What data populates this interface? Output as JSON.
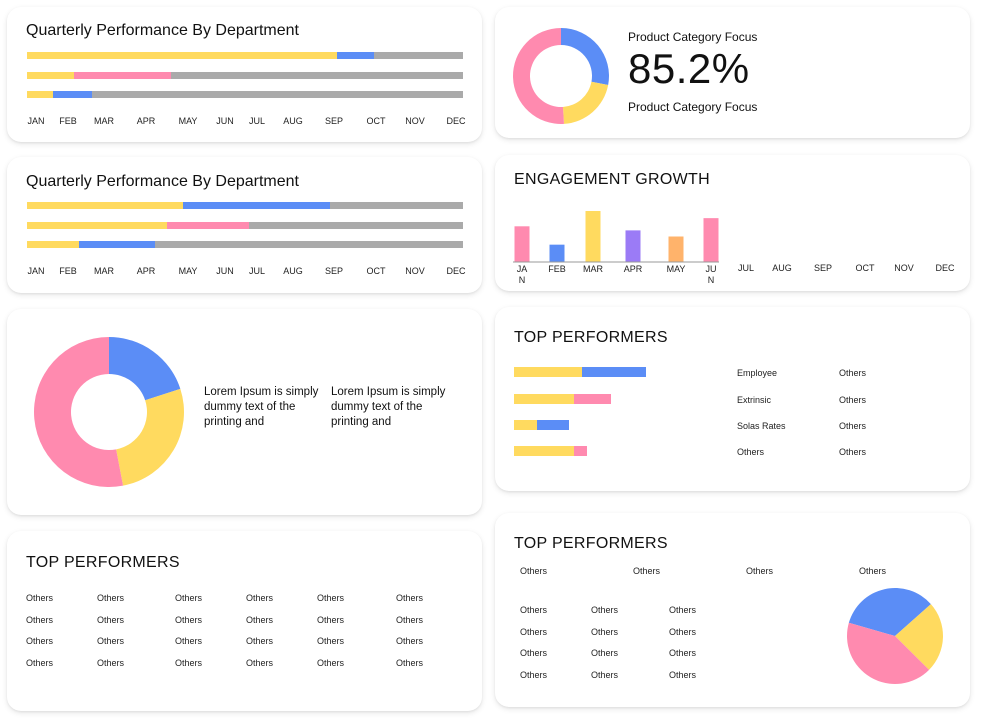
{
  "colors": {
    "yellow": "#FFDA5F",
    "blue": "#5B8DF6",
    "pink": "#FF8AAF",
    "purple": "#9B7BF6",
    "orange": "#FFB36B",
    "gray": "#AAAAAA"
  },
  "months": [
    "JAN",
    "FEB",
    "MAR",
    "APR",
    "MAY",
    "JUN",
    "JUL",
    "AUG",
    "SEP",
    "OCT",
    "NOV",
    "DEC"
  ],
  "chart_data": [
    {
      "id": "quarterly-1",
      "type": "bar",
      "orientation": "horizontal-stacked",
      "title": "Quarterly Performance By Department",
      "categories": [
        "JAN",
        "FEB",
        "MAR",
        "APR",
        "MAY",
        "JUN",
        "JUL",
        "AUG",
        "SEP",
        "OCT",
        "NOV",
        "DEC"
      ],
      "rows": [
        [
          {
            "color": "yellow",
            "from": 0,
            "to": 0.712
          },
          {
            "color": "blue",
            "from": 0.712,
            "to": 0.795
          }
        ],
        [
          {
            "color": "yellow",
            "from": 0,
            "to": 0.108
          },
          {
            "color": "pink",
            "from": 0.108,
            "to": 0.33
          }
        ],
        [
          {
            "color": "yellow",
            "from": 0,
            "to": 0.06
          },
          {
            "color": "blue",
            "from": 0.06,
            "to": 0.148
          }
        ]
      ]
    },
    {
      "id": "quarterly-2",
      "type": "bar",
      "orientation": "horizontal-stacked",
      "title": "Quarterly Performance By Department",
      "categories": [
        "JAN",
        "FEB",
        "MAR",
        "APR",
        "MAY",
        "JUN",
        "JUL",
        "AUG",
        "SEP",
        "OCT",
        "NOV",
        "DEC"
      ],
      "rows": [
        [
          {
            "color": "yellow",
            "from": 0,
            "to": 0.357
          },
          {
            "color": "blue",
            "from": 0.357,
            "to": 0.695
          }
        ],
        [
          {
            "color": "yellow",
            "from": 0,
            "to": 0.32
          },
          {
            "color": "pink",
            "from": 0.32,
            "to": 0.51
          }
        ],
        [
          {
            "color": "yellow",
            "from": 0,
            "to": 0.12
          },
          {
            "color": "blue",
            "from": 0.12,
            "to": 0.294
          }
        ]
      ]
    },
    {
      "id": "category-donut",
      "type": "pie",
      "variant": "donut",
      "title": "Product Category Focus",
      "value": "85.2%",
      "subtitle": "Product Category Focus",
      "slices": [
        {
          "color": "blue",
          "value": 0.28
        },
        {
          "color": "yellow",
          "value": 0.21
        },
        {
          "color": "pink",
          "value": 0.51
        }
      ]
    },
    {
      "id": "engagement",
      "type": "bar",
      "title": "ENGAGEMENT GROWTH",
      "categories": [
        "JAN",
        "FEB",
        "MAR",
        "APR",
        "MAY",
        "JUN",
        "JUL",
        "AUG",
        "SEP",
        "OCT",
        "NOV",
        "DEC"
      ],
      "values": [
        35,
        17,
        50,
        31,
        25,
        43,
        null,
        null,
        null,
        null,
        null,
        null
      ],
      "bar_colors": [
        "pink",
        "blue",
        "yellow",
        "purple",
        "orange",
        "pink"
      ],
      "ylim": [
        0,
        55
      ]
    },
    {
      "id": "big-donut",
      "type": "pie",
      "variant": "donut",
      "slices": [
        {
          "color": "blue",
          "value": 0.2
        },
        {
          "color": "yellow",
          "value": 0.27
        },
        {
          "color": "pink",
          "value": 0.53
        }
      ]
    },
    {
      "id": "top-performers-bars",
      "type": "bar",
      "orientation": "horizontal-stacked",
      "title": "TOP PERFORMERS",
      "rows": [
        [
          {
            "color": "yellow",
            "value": 68
          },
          {
            "color": "blue",
            "value": 64
          }
        ],
        [
          {
            "color": "yellow",
            "value": 60
          },
          {
            "color": "pink",
            "value": 37
          }
        ],
        [
          {
            "color": "yellow",
            "value": 23
          },
          {
            "color": "blue",
            "value": 32
          }
        ],
        [
          {
            "color": "yellow",
            "value": 60
          },
          {
            "color": "pink",
            "value": 13
          }
        ]
      ],
      "scale_max": 132
    },
    {
      "id": "performers-pie",
      "type": "pie",
      "slices": [
        {
          "color": "blue",
          "value": 0.34
        },
        {
          "color": "yellow",
          "value": 0.24
        },
        {
          "color": "pink",
          "value": 0.42
        }
      ]
    }
  ],
  "lorem": {
    "left": "Lorem Ipsum is simply dummy text of the printing and",
    "right": "Lorem Ipsum is simply dummy text of the printing and"
  },
  "top_performers_bars_card": {
    "title": "TOP PERFORMERS",
    "rows": [
      {
        "name": "Employee",
        "value": "Others"
      },
      {
        "name": "Extrinsic",
        "value": "Others"
      },
      {
        "name": "Solas Rates",
        "value": "Others"
      },
      {
        "name": "Others",
        "value": "Others"
      }
    ]
  },
  "top_performers_table": {
    "title": "TOP PERFORMERS",
    "rows": [
      [
        "Others",
        "Others",
        "Others",
        "Others",
        "Others",
        "Others"
      ],
      [
        "Others",
        "Others",
        "Others",
        "Others",
        "Others",
        "Others"
      ],
      [
        "Others",
        "Others",
        "Others",
        "Others",
        "Others",
        "Others"
      ],
      [
        "Others",
        "Others",
        "Others",
        "Others",
        "Others",
        "Others"
      ]
    ]
  },
  "top_performers_pie_card": {
    "title": "TOP PERFORMERS",
    "header": [
      "Others",
      "Others",
      "Others",
      "Others"
    ],
    "rows": [
      [
        "Others",
        "Others",
        "Others"
      ],
      [
        "Others",
        "Others",
        "Others"
      ],
      [
        "Others",
        "Others",
        "Others"
      ],
      [
        "Others",
        "Others",
        "Others"
      ]
    ]
  }
}
